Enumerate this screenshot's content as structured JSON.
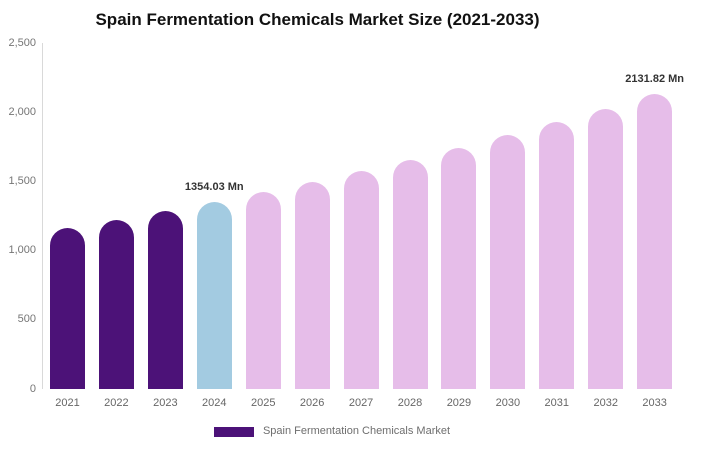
{
  "chart_data": {
    "type": "bar",
    "title": "Spain Fermentation Chemicals Market Size (2021-2033)",
    "xlabel": "",
    "ylabel": "",
    "categories": [
      "2021",
      "2022",
      "2023",
      "2024",
      "2025",
      "2026",
      "2027",
      "2028",
      "2029",
      "2030",
      "2031",
      "2032",
      "2033"
    ],
    "values": [
      1164.0,
      1224.18,
      1287.47,
      1354.03,
      1424.05,
      1497.68,
      1575.11,
      1656.55,
      1742.2,
      1832.28,
      1927.01,
      2026.65,
      2131.82
    ],
    "unit": "Mn",
    "bar_colors": [
      "#4C1278",
      "#4C1278",
      "#4C1278",
      "#A3CBE1",
      "#E6BDE9",
      "#E6BDE9",
      "#E6BDE9",
      "#E6BDE9",
      "#E6BDE9",
      "#E6BDE9",
      "#E6BDE9",
      "#E6BDE9",
      "#E6BDE9"
    ],
    "ylim": [
      0,
      2500
    ],
    "y_tick_values": [
      0,
      500,
      1000,
      1500,
      2000,
      2500
    ],
    "y_tick_labels": [
      "0",
      "500",
      "1,000",
      "1,500",
      "2,000",
      "2,500"
    ],
    "grid": false,
    "annotations": [
      {
        "category": "2024",
        "text": "1354.03 Mn"
      },
      {
        "category": "2033",
        "text": "2131.82 Mn"
      }
    ],
    "legend": {
      "label": "Spain Fermentation Chemicals Market",
      "swatch_color": "#4C1278",
      "position": "bottom"
    }
  }
}
